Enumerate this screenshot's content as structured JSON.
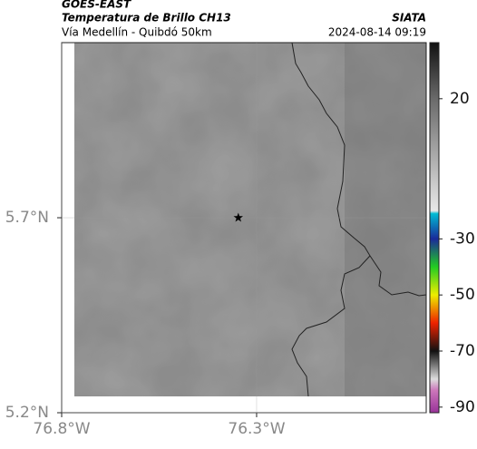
{
  "header": {
    "title": "GOES-EAST",
    "subtitle": "Temperatura de Brillo CH13",
    "region": "Vía Medellín - Quibdó 50km",
    "source": "SIATA",
    "datetime": "2024-08-14 09:19"
  },
  "map": {
    "xlim": [
      -76.8,
      -75.865
    ],
    "ylim": [
      5.2,
      6.149
    ],
    "xticks": [
      {
        "value": -76.8,
        "label": "76.8°W"
      },
      {
        "value": -76.3,
        "label": "76.3°W"
      }
    ],
    "yticks": [
      {
        "value": 5.2,
        "label": "5.2°N"
      },
      {
        "value": 5.7,
        "label": "5.7°N"
      }
    ],
    "marker": {
      "lon": -76.347,
      "lat": 5.7
    }
  },
  "colorbar": {
    "clim": [
      -92,
      40
    ],
    "ticks": [
      20,
      -30,
      -50,
      -70,
      -90
    ],
    "colormap": [
      [
        40,
        "#111111"
      ],
      [
        20,
        "#6a6a6a"
      ],
      [
        -20,
        "#e8e8e8"
      ],
      [
        -21,
        "#00bcd4"
      ],
      [
        -30,
        "#1a2a9a"
      ],
      [
        -40,
        "#22cc22"
      ],
      [
        -50,
        "#eeee00"
      ],
      [
        -60,
        "#ee2200"
      ],
      [
        -70,
        "#111111"
      ],
      [
        -80,
        "#dddddd"
      ],
      [
        -84,
        "#cc77bb"
      ],
      [
        -92,
        "#993399"
      ]
    ]
  }
}
